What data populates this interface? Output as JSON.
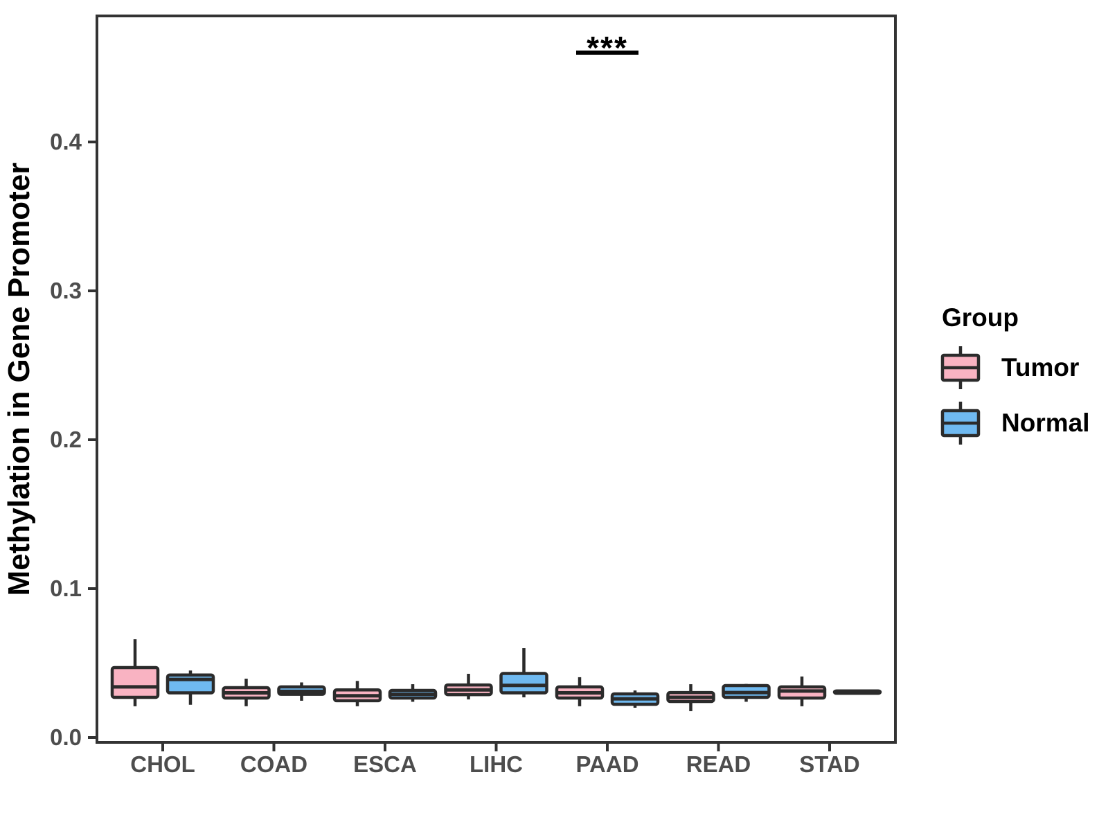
{
  "figure": {
    "ylabel": "Methylation in Gene Promoter",
    "legend": {
      "title": "Group",
      "items": [
        {
          "label": "Tumor",
          "color": "#F9B3C2"
        },
        {
          "label": "Normal",
          "color": "#6FB9F0"
        }
      ]
    },
    "significance": {
      "label": "***",
      "category": "PAAD"
    }
  },
  "chart_data": {
    "type": "boxplot",
    "title": "",
    "xlabel": "",
    "ylabel": "Methylation in Gene Promoter",
    "categories": [
      "CHOL",
      "COAD",
      "ESCA",
      "LIHC",
      "PAAD",
      "READ",
      "STAD"
    ],
    "ytick_labels": [
      "0.0",
      "0.1",
      "0.2",
      "0.3",
      "0.4"
    ],
    "yticks": [
      0.0,
      0.1,
      0.2,
      0.3,
      0.4
    ],
    "ylim": [
      0.0,
      0.485
    ],
    "grid": false,
    "legend_position": "right",
    "annotations": [
      {
        "text": "***",
        "category": "PAAD"
      }
    ],
    "series": [
      {
        "name": "Tumor",
        "color": "#F9B3C2",
        "boxes": [
          {
            "category": "CHOL",
            "min": 0.021,
            "q1": 0.027,
            "median": 0.034,
            "q3": 0.047,
            "max": 0.066
          },
          {
            "category": "COAD",
            "min": 0.021,
            "q1": 0.0265,
            "median": 0.03,
            "q3": 0.0335,
            "max": 0.0395
          },
          {
            "category": "ESCA",
            "min": 0.021,
            "q1": 0.0247,
            "median": 0.028,
            "q3": 0.032,
            "max": 0.038
          },
          {
            "category": "LIHC",
            "min": 0.0256,
            "q1": 0.0288,
            "median": 0.032,
            "q3": 0.0353,
            "max": 0.0428
          },
          {
            "category": "PAAD",
            "min": 0.021,
            "q1": 0.0265,
            "median": 0.03,
            "q3": 0.034,
            "max": 0.0405
          },
          {
            "category": "READ",
            "min": 0.0177,
            "q1": 0.0242,
            "median": 0.027,
            "q3": 0.0302,
            "max": 0.0358
          },
          {
            "category": "STAD",
            "min": 0.021,
            "q1": 0.0265,
            "median": 0.0312,
            "q3": 0.034,
            "max": 0.041
          }
        ]
      },
      {
        "name": "Normal",
        "color": "#6FB9F0",
        "boxes": [
          {
            "category": "CHOL",
            "min": 0.022,
            "q1": 0.03,
            "median": 0.039,
            "q3": 0.042,
            "max": 0.045
          },
          {
            "category": "COAD",
            "min": 0.0247,
            "q1": 0.029,
            "median": 0.031,
            "q3": 0.034,
            "max": 0.037
          },
          {
            "category": "ESCA",
            "min": 0.024,
            "q1": 0.0265,
            "median": 0.029,
            "q3": 0.0316,
            "max": 0.0358
          },
          {
            "category": "LIHC",
            "min": 0.027,
            "q1": 0.03,
            "median": 0.035,
            "q3": 0.043,
            "max": 0.06
          },
          {
            "category": "PAAD",
            "min": 0.02,
            "q1": 0.0223,
            "median": 0.026,
            "q3": 0.0293,
            "max": 0.0316
          },
          {
            "category": "READ",
            "min": 0.024,
            "q1": 0.027,
            "median": 0.0302,
            "q3": 0.0349,
            "max": 0.036
          },
          {
            "category": "STAD",
            "min": 0.0295,
            "q1": 0.0297,
            "median": 0.0305,
            "q3": 0.0313,
            "max": 0.0315
          }
        ]
      }
    ],
    "colors": {
      "box_border": "#2B2B2B",
      "axis": "#333333",
      "tick_label": "#4D4D4D",
      "axis_title": "#000000"
    }
  }
}
